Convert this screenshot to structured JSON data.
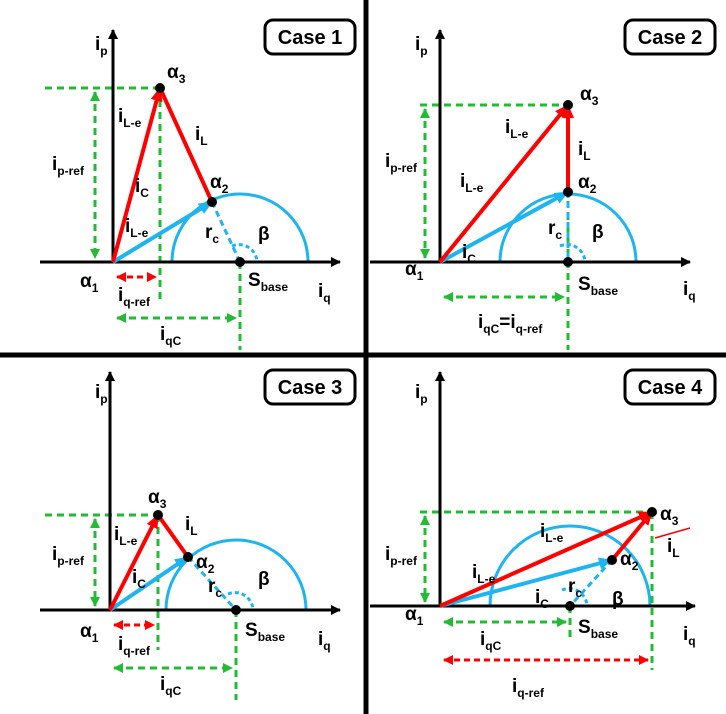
{
  "panels": [
    {
      "title": "Case 1",
      "labels": [
        [
          "i",
          "p"
        ],
        [
          "α",
          "3"
        ],
        [
          "i",
          "L-e"
        ],
        [
          "i",
          "L"
        ],
        [
          "α",
          "2"
        ],
        [
          "i",
          "C"
        ],
        [
          "i",
          "L-e"
        ],
        [
          "r",
          "c"
        ],
        [
          "β"
        ],
        [
          "α",
          "1"
        ],
        [
          "i",
          "q-ref"
        ],
        [
          "S",
          "base"
        ],
        [
          "i",
          "q"
        ],
        [
          "i",
          "qC"
        ],
        [
          "i",
          "p-ref"
        ]
      ]
    },
    {
      "title": "Case 2",
      "labels": [
        [
          "i",
          "p"
        ],
        [
          "α",
          "3"
        ],
        [
          "i",
          "L-e"
        ],
        [
          "i",
          "L"
        ],
        [
          "α",
          "2"
        ],
        [
          "i",
          "p-ref"
        ],
        [
          "i",
          "L-e"
        ],
        [
          "r",
          "c"
        ],
        [
          "β"
        ],
        [
          "i",
          "C"
        ],
        [
          "α",
          "1"
        ],
        [
          "S",
          "base"
        ],
        [
          "i",
          "q"
        ],
        [
          "i",
          "qC",
          "=i",
          "q-ref"
        ]
      ]
    },
    {
      "title": "Case 3",
      "labels": [
        [
          "i",
          "p"
        ],
        [
          "α",
          "3"
        ],
        [
          "i",
          "L-e"
        ],
        [
          "i",
          "L"
        ],
        [
          "i",
          "p-ref"
        ],
        [
          "α",
          "2"
        ],
        [
          "i",
          "C"
        ],
        [
          "r",
          "c"
        ],
        [
          "β"
        ],
        [
          "α",
          "1"
        ],
        [
          "i",
          "q-ref"
        ],
        [
          "S",
          "base"
        ],
        [
          "i",
          "q"
        ],
        [
          "i",
          "qC"
        ]
      ]
    },
    {
      "title": "Case 4",
      "labels": [
        [
          "i",
          "p"
        ],
        [
          "α",
          "3"
        ],
        [
          "i",
          "L-e"
        ],
        [
          "i",
          "L"
        ],
        [
          "i",
          "L-e"
        ],
        [
          "i",
          "p-ref"
        ],
        [
          "α",
          "2"
        ],
        [
          "r",
          "c"
        ],
        [
          "i",
          "C"
        ],
        [
          "β"
        ],
        [
          "α",
          "1"
        ],
        [
          "S",
          "base"
        ],
        [
          "i",
          "q"
        ],
        [
          "i",
          "qC"
        ],
        [
          "i",
          "q-ref"
        ]
      ]
    }
  ]
}
